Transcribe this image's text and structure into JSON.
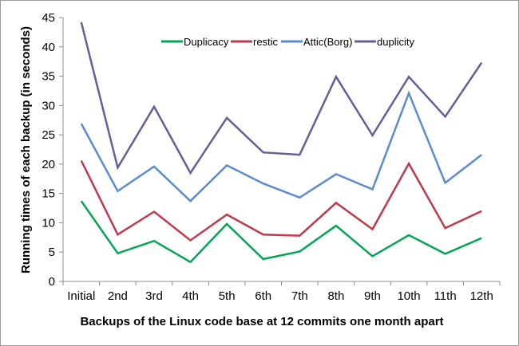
{
  "chart_data": {
    "type": "line",
    "title": "",
    "xlabel": "Backups of the Linux code base at 12 commits one month apart",
    "ylabel": "Running times of each backup  (in seconds)",
    "categories": [
      "Initial",
      "2nd",
      "3rd",
      "4th",
      "5th",
      "6th",
      "7th",
      "8th",
      "9th",
      "10th",
      "11th",
      "12th"
    ],
    "ylim": [
      0,
      45
    ],
    "yticks": [
      0,
      5,
      10,
      15,
      20,
      25,
      30,
      35,
      40,
      45
    ],
    "grid": false,
    "legend_position": "top-inside",
    "series": [
      {
        "name": "Duplicacy",
        "color": "#00a651",
        "values": [
          13.7,
          4.8,
          6.9,
          3.3,
          9.8,
          3.8,
          5.1,
          9.5,
          4.3,
          7.9,
          4.7,
          7.4
        ]
      },
      {
        "name": "restic",
        "color": "#c0394b",
        "values": [
          20.6,
          8.0,
          11.9,
          7.0,
          11.4,
          8.0,
          7.8,
          13.4,
          8.9,
          20.1,
          9.1,
          12.0
        ]
      },
      {
        "name": "Attic(Borg)",
        "color": "#5b8bd0",
        "values": [
          26.9,
          15.4,
          19.6,
          13.7,
          19.8,
          16.7,
          14.3,
          18.3,
          15.7,
          32.1,
          16.8,
          21.6
        ]
      },
      {
        "name": "duplicity",
        "color": "#6a5b9a",
        "values": [
          44.2,
          19.4,
          29.8,
          18.5,
          27.9,
          22.0,
          21.6,
          34.9,
          24.9,
          34.9,
          28.1,
          37.3
        ]
      }
    ]
  }
}
